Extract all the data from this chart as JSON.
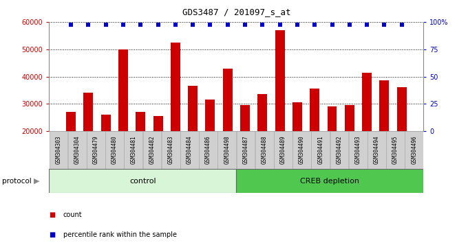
{
  "title": "GDS3487 / 201097_s_at",
  "samples": [
    "GSM304303",
    "GSM304304",
    "GSM304479",
    "GSM304480",
    "GSM304481",
    "GSM304482",
    "GSM304483",
    "GSM304484",
    "GSM304486",
    "GSM304498",
    "GSM304487",
    "GSM304488",
    "GSM304489",
    "GSM304490",
    "GSM304491",
    "GSM304492",
    "GSM304493",
    "GSM304494",
    "GSM304495",
    "GSM304496"
  ],
  "counts": [
    27000,
    34000,
    26000,
    50000,
    27000,
    25500,
    52500,
    36500,
    31500,
    43000,
    29500,
    33500,
    57000,
    30500,
    35500,
    29000,
    29500,
    41500,
    38500,
    36000
  ],
  "bar_color": "#cc0000",
  "dot_color": "#0000cc",
  "left_axis_color": "#cc0000",
  "right_axis_color": "#0000cc",
  "ylim_left": [
    20000,
    60000
  ],
  "ylim_right": [
    0,
    100
  ],
  "yticks_left": [
    20000,
    30000,
    40000,
    50000,
    60000
  ],
  "yticks_right": [
    0,
    25,
    50,
    75,
    100
  ],
  "yticklabels_right": [
    "0",
    "25",
    "50",
    "75",
    "100%"
  ],
  "grid_color": "#000000",
  "bg_color": "#ffffff",
  "plot_bg": "#ffffff",
  "label_bg": "#d0d0d0",
  "control_count": 10,
  "control_label": "control",
  "creb_label": "CREB depletion",
  "control_color": "#d8f5d8",
  "creb_color": "#50c850",
  "protocol_label": "protocol",
  "protocol_arrow_color": "#888888",
  "legend_count_label": "count",
  "legend_pct_label": "percentile rank within the sample",
  "dot_pct": 97.5,
  "dot_size": 18,
  "bar_width": 0.55
}
